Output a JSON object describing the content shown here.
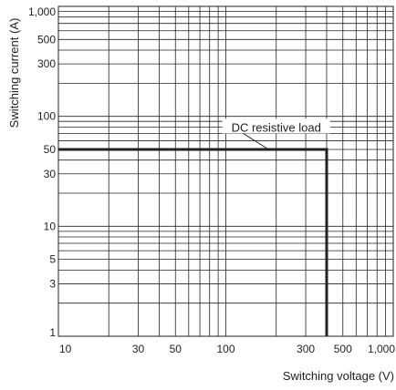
{
  "chart_data": {
    "type": "line",
    "xlabel": "Switching voltage (V)",
    "ylabel": "Switching current (A)",
    "x_scale": "log",
    "y_scale": "log",
    "xlim": [
      10,
      1000
    ],
    "ylim": [
      1,
      1000
    ],
    "grid": true,
    "x_ticks": [
      {
        "value": 10,
        "label": "10"
      },
      {
        "value": 30,
        "label": "30"
      },
      {
        "value": 50,
        "label": "50"
      },
      {
        "value": 100,
        "label": "100"
      },
      {
        "value": 300,
        "label": "300"
      },
      {
        "value": 500,
        "label": "500"
      },
      {
        "value": 1000,
        "label": "1,000"
      }
    ],
    "y_ticks": [
      {
        "value": 1,
        "label": "1"
      },
      {
        "value": 3,
        "label": "3"
      },
      {
        "value": 5,
        "label": "5"
      },
      {
        "value": 10,
        "label": "10"
      },
      {
        "value": 30,
        "label": "30"
      },
      {
        "value": 50,
        "label": "50"
      },
      {
        "value": 100,
        "label": "100"
      },
      {
        "value": 300,
        "label": "300"
      },
      {
        "value": 500,
        "label": "500"
      },
      {
        "value": 1000,
        "label": "1,000"
      }
    ],
    "series": [
      {
        "name": "DC resistive load",
        "x": [
          10,
          400,
          400
        ],
        "y": [
          50,
          50,
          1
        ]
      }
    ],
    "annotations": [
      {
        "text": "DC resistive load",
        "x": 200,
        "y": 80,
        "points_to_x": 180,
        "points_to_y": 50
      }
    ],
    "colors": {
      "grid": "#222222",
      "line": "#222222",
      "label_bg": "#ffffff"
    }
  }
}
